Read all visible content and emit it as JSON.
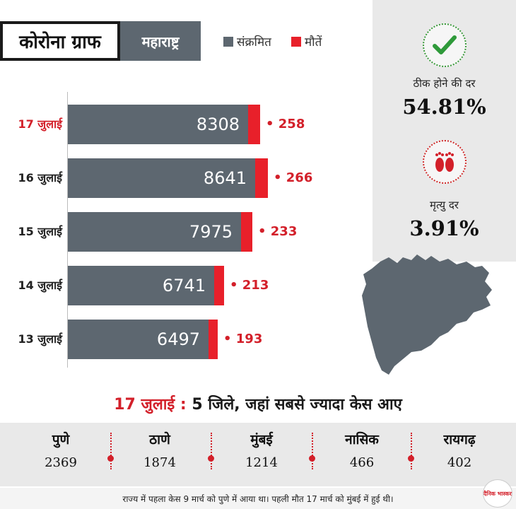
{
  "header": {
    "title": "कोरोना ग्राफ",
    "state": "महाराष्ट्र",
    "legend": [
      {
        "label": "संक्रमित",
        "color": "#5d6770"
      },
      {
        "label": "मौतें",
        "color": "#e8202a"
      }
    ]
  },
  "stats": {
    "recovery": {
      "label": "ठीक होने की दर",
      "value": "54.81%",
      "icon": "check-icon"
    },
    "mortality": {
      "label": "मृत्यु दर",
      "value": "3.91%",
      "icon": "footprints-icon"
    }
  },
  "chart_data": {
    "type": "bar",
    "orientation": "horizontal",
    "stacked": true,
    "categories": [
      "17 जुलाई",
      "16 जुलाई",
      "15 जुलाई",
      "14 जुलाई",
      "13 जुलाई"
    ],
    "series": [
      {
        "name": "संक्रमित",
        "values": [
          8308,
          8641,
          7975,
          6741,
          6497
        ],
        "color": "#5d6770"
      },
      {
        "name": "मौतें",
        "values": [
          258,
          266,
          233,
          213,
          193
        ],
        "color": "#e8202a"
      }
    ],
    "death_labels": [
      "• 258",
      "• 266",
      "• 233",
      "• 213",
      "• 193"
    ],
    "highlight_category": "17 जुलाई",
    "highlight_color": "#d3202a"
  },
  "districts": {
    "headline_date": "17 जुलाई",
    "headline_sep": " : ",
    "headline_text": "5 जिले, जहां सबसे ज्यादा केस आए",
    "items": [
      {
        "name": "पुणे",
        "value": "2369"
      },
      {
        "name": "ठाणे",
        "value": "1874"
      },
      {
        "name": "मुंबई",
        "value": "1214"
      },
      {
        "name": "नासिक",
        "value": "466"
      },
      {
        "name": "रायगढ़",
        "value": "402"
      }
    ]
  },
  "footer": {
    "note": "राज्य में पहला केस 9 मार्च को पुणे में आया था। पहली मौत 17 मार्च को मुंबई में हुई थी।",
    "logo": "दैनिक भास्कर"
  }
}
